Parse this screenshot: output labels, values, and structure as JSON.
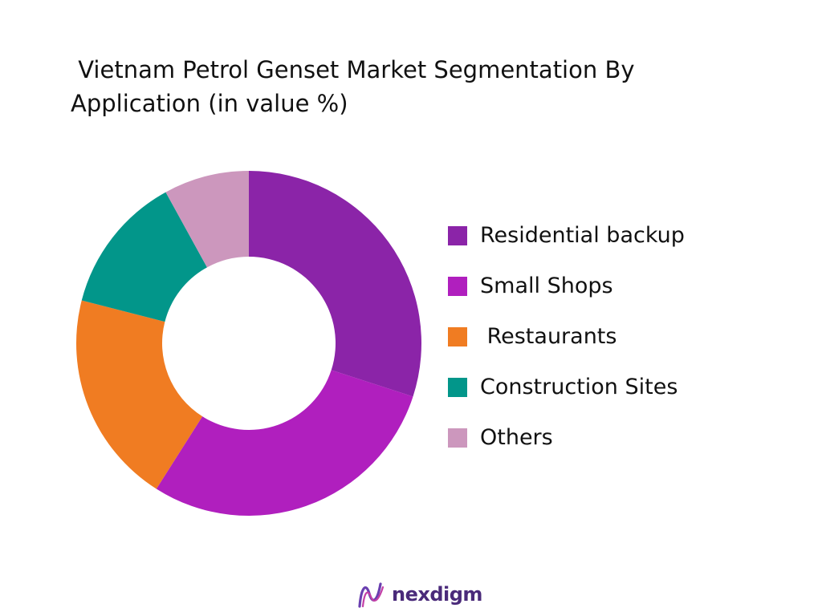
{
  "title": " Vietnam Petrol Genset Market Segmentation By Application (in value %)",
  "brand": {
    "name": "nexdigm",
    "logo_icon": "nexdigm-wave-logo-icon"
  },
  "chart_data": {
    "type": "pie",
    "style": "donut",
    "title": " Vietnam Petrol Genset Market Segmentation By Application (in value %)",
    "categories": [
      "Residential backup",
      "Small Shops",
      " Restaurants",
      "Construction Sites",
      "Others"
    ],
    "values": [
      30,
      29,
      20,
      13,
      8
    ],
    "unit": "%",
    "colors": [
      "#8b24a8",
      "#b01fbe",
      "#f07c22",
      "#02968a",
      "#cc97bd"
    ],
    "legend": "right"
  }
}
